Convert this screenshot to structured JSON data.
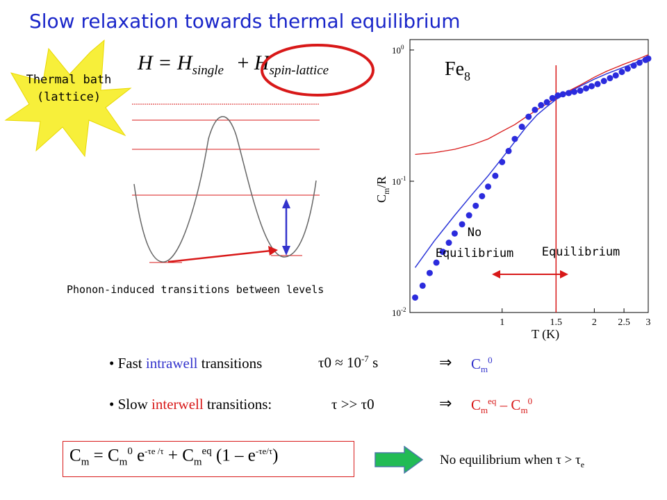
{
  "title": "Slow relaxation towards thermal equilibrium",
  "colors": {
    "title": "#1a26c9",
    "red": "#d81818",
    "blue": "#3333cc",
    "star": "#f7ef3a",
    "arrow": "#22bb55"
  },
  "bath": {
    "line1": "Thermal bath",
    "line2": "(lattice)"
  },
  "hamiltonian": {
    "H": "H = ",
    "Hsingle": "H",
    "single": "single",
    "plus": "+",
    "Hsl": "H",
    "sl": "spin-lattice"
  },
  "diagram_caption": "Phonon-induced transitions between levels",
  "chart_data": {
    "type": "scatter",
    "title": "Fe",
    "title_sub": "8",
    "xlabel": "T (K)",
    "ylabel_main": "C",
    "ylabel_sub": "m",
    "ylabel_rest": "/R",
    "xscale": "log",
    "yscale": "log",
    "xlim": [
      0.5,
      3
    ],
    "ylim": [
      0.01,
      1.2
    ],
    "xticks": [
      "1",
      "1.5",
      "2",
      "2.5",
      "3"
    ],
    "xtick_values": [
      1,
      1.5,
      2,
      2.5,
      3
    ],
    "yticks": [
      "10",
      "10",
      "10"
    ],
    "ytick_exp": [
      "0",
      "-1",
      "-2"
    ],
    "ytick_values": [
      1,
      0.1,
      0.01
    ],
    "vline_x": 1.5,
    "regions": {
      "left_line1": "No",
      "left_line2": "Equilibrium",
      "right": "Equilibrium"
    },
    "points": {
      "x": [
        0.52,
        0.55,
        0.58,
        0.61,
        0.64,
        0.67,
        0.7,
        0.74,
        0.78,
        0.82,
        0.86,
        0.9,
        0.95,
        1.0,
        1.05,
        1.1,
        1.16,
        1.22,
        1.28,
        1.34,
        1.4,
        1.46,
        1.52,
        1.58,
        1.65,
        1.72,
        1.8,
        1.88,
        1.96,
        2.05,
        2.15,
        2.25,
        2.35,
        2.46,
        2.57,
        2.69,
        2.81,
        2.94,
        3.0
      ],
      "y": [
        0.013,
        0.016,
        0.02,
        0.024,
        0.029,
        0.034,
        0.04,
        0.047,
        0.055,
        0.065,
        0.077,
        0.091,
        0.11,
        0.14,
        0.17,
        0.21,
        0.26,
        0.31,
        0.35,
        0.38,
        0.4,
        0.43,
        0.45,
        0.46,
        0.47,
        0.48,
        0.49,
        0.51,
        0.53,
        0.55,
        0.58,
        0.61,
        0.64,
        0.68,
        0.72,
        0.76,
        0.8,
        0.84,
        0.86
      ]
    },
    "series": [
      {
        "x": [
          0.52,
          0.6,
          0.7,
          0.8,
          0.9,
          1.0,
          1.1,
          1.2,
          1.3,
          1.4,
          1.5,
          1.6,
          1.8,
          2.0,
          2.2,
          2.5,
          2.8,
          3.0
        ],
        "y": [
          0.022,
          0.035,
          0.055,
          0.08,
          0.11,
          0.15,
          0.2,
          0.26,
          0.32,
          0.37,
          0.42,
          0.46,
          0.53,
          0.6,
          0.66,
          0.74,
          0.82,
          0.88
        ]
      },
      {
        "x": [
          0.52,
          0.6,
          0.7,
          0.8,
          0.9,
          1.0,
          1.1,
          1.2,
          1.3,
          1.4,
          1.5,
          1.6,
          1.8,
          2.0,
          2.2,
          2.5,
          2.8,
          3.0
        ],
        "y": [
          0.16,
          0.165,
          0.175,
          0.19,
          0.21,
          0.24,
          0.27,
          0.31,
          0.35,
          0.39,
          0.43,
          0.47,
          0.54,
          0.62,
          0.69,
          0.78,
          0.86,
          0.92
        ]
      }
    ]
  },
  "bullets": {
    "fast_pre": "Fast ",
    "fast_word": "intrawell",
    "fast_post": " transitions",
    "fast_rel": "τ0 ≈ 10",
    "fast_exp": "-7",
    "fast_unit": " s",
    "implies": "⇒",
    "fast_result": "C",
    "fast_result_sub": "m",
    "fast_result_sup": "0",
    "slow_pre": "Slow ",
    "slow_word": "interwell",
    "slow_post": " transitions:",
    "slow_rel": "τ >> τ0",
    "slow_result_a": "C",
    "slow_result_a_sub": "m",
    "slow_result_a_sup": "eq",
    "slow_result_dash": " – C",
    "slow_result_b_sub": "m",
    "slow_result_b_sup": "0"
  },
  "formula": {
    "a": "C",
    "a_sub": "m",
    "eq": " = C",
    "b_sub": "m",
    "b_sup": "0",
    "e1": " e",
    "e1_sup": "-τe /τ",
    "plus": " + C",
    "c_sub": "m",
    "c_sup": "eq",
    "rest": " (1 – e",
    "rest_sup": "-τe/τ",
    "close": ")"
  },
  "conclusion": {
    "text": "No equilibrium when τ > τ",
    "sub": "e"
  }
}
